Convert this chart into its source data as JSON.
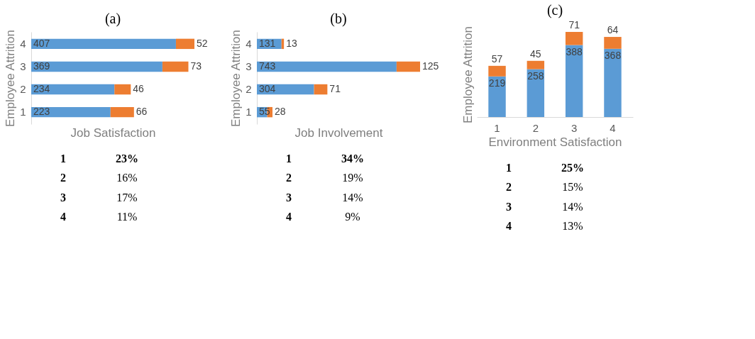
{
  "chart_data": [
    {
      "type": "bar",
      "orientation": "horizontal",
      "stacked": true,
      "title": "(a)",
      "ylabel": "Employee Attrition",
      "xlabel": "Job Satisfaction",
      "categories": [
        "4",
        "3",
        "2",
        "1"
      ],
      "series": [
        {
          "color": "#5b9bd5",
          "values": [
            407,
            369,
            234,
            223
          ]
        },
        {
          "color": "#ed7d31",
          "values": [
            52,
            73,
            46,
            66
          ]
        }
      ],
      "data_labels": true,
      "tick_labels": "y",
      "grid": false,
      "legend": false,
      "annotations": [
        "1",
        "23%",
        "2",
        "16%",
        "3",
        "17%",
        "4",
        "11%"
      ]
    },
    {
      "type": "bar",
      "orientation": "horizontal",
      "stacked": true,
      "title": "(b)",
      "ylabel": "Employee Attrition",
      "xlabel": "Job Involvement",
      "categories": [
        "4",
        "3",
        "2",
        "1"
      ],
      "series": [
        {
          "color": "#5b9bd5",
          "values": [
            131,
            743,
            304,
            55
          ]
        },
        {
          "color": "#ed7d31",
          "values": [
            13,
            125,
            71,
            28
          ]
        }
      ],
      "data_labels": true,
      "tick_labels": "y",
      "grid": false,
      "legend": false,
      "annotations": [
        "1",
        "34%",
        "2",
        "19%",
        "3",
        "14%",
        "4",
        "9%"
      ]
    },
    {
      "type": "bar",
      "stacked": true,
      "title": "(c)",
      "ylabel": "Employee Attrition",
      "xlabel": "Environment Satisfaction",
      "categories": [
        "1",
        "2",
        "3",
        "4"
      ],
      "series": [
        {
          "color": "#5b9bd5",
          "values": [
            219,
            258,
            388,
            368
          ]
        },
        {
          "color": "#ed7d31",
          "values": [
            57,
            45,
            71,
            64
          ]
        }
      ],
      "data_labels": true,
      "tick_labels": "x",
      "grid": false,
      "legend": false,
      "annotations": [
        "1",
        "25%",
        "2",
        "15%",
        "3",
        "14%",
        "4",
        "13%"
      ]
    }
  ]
}
